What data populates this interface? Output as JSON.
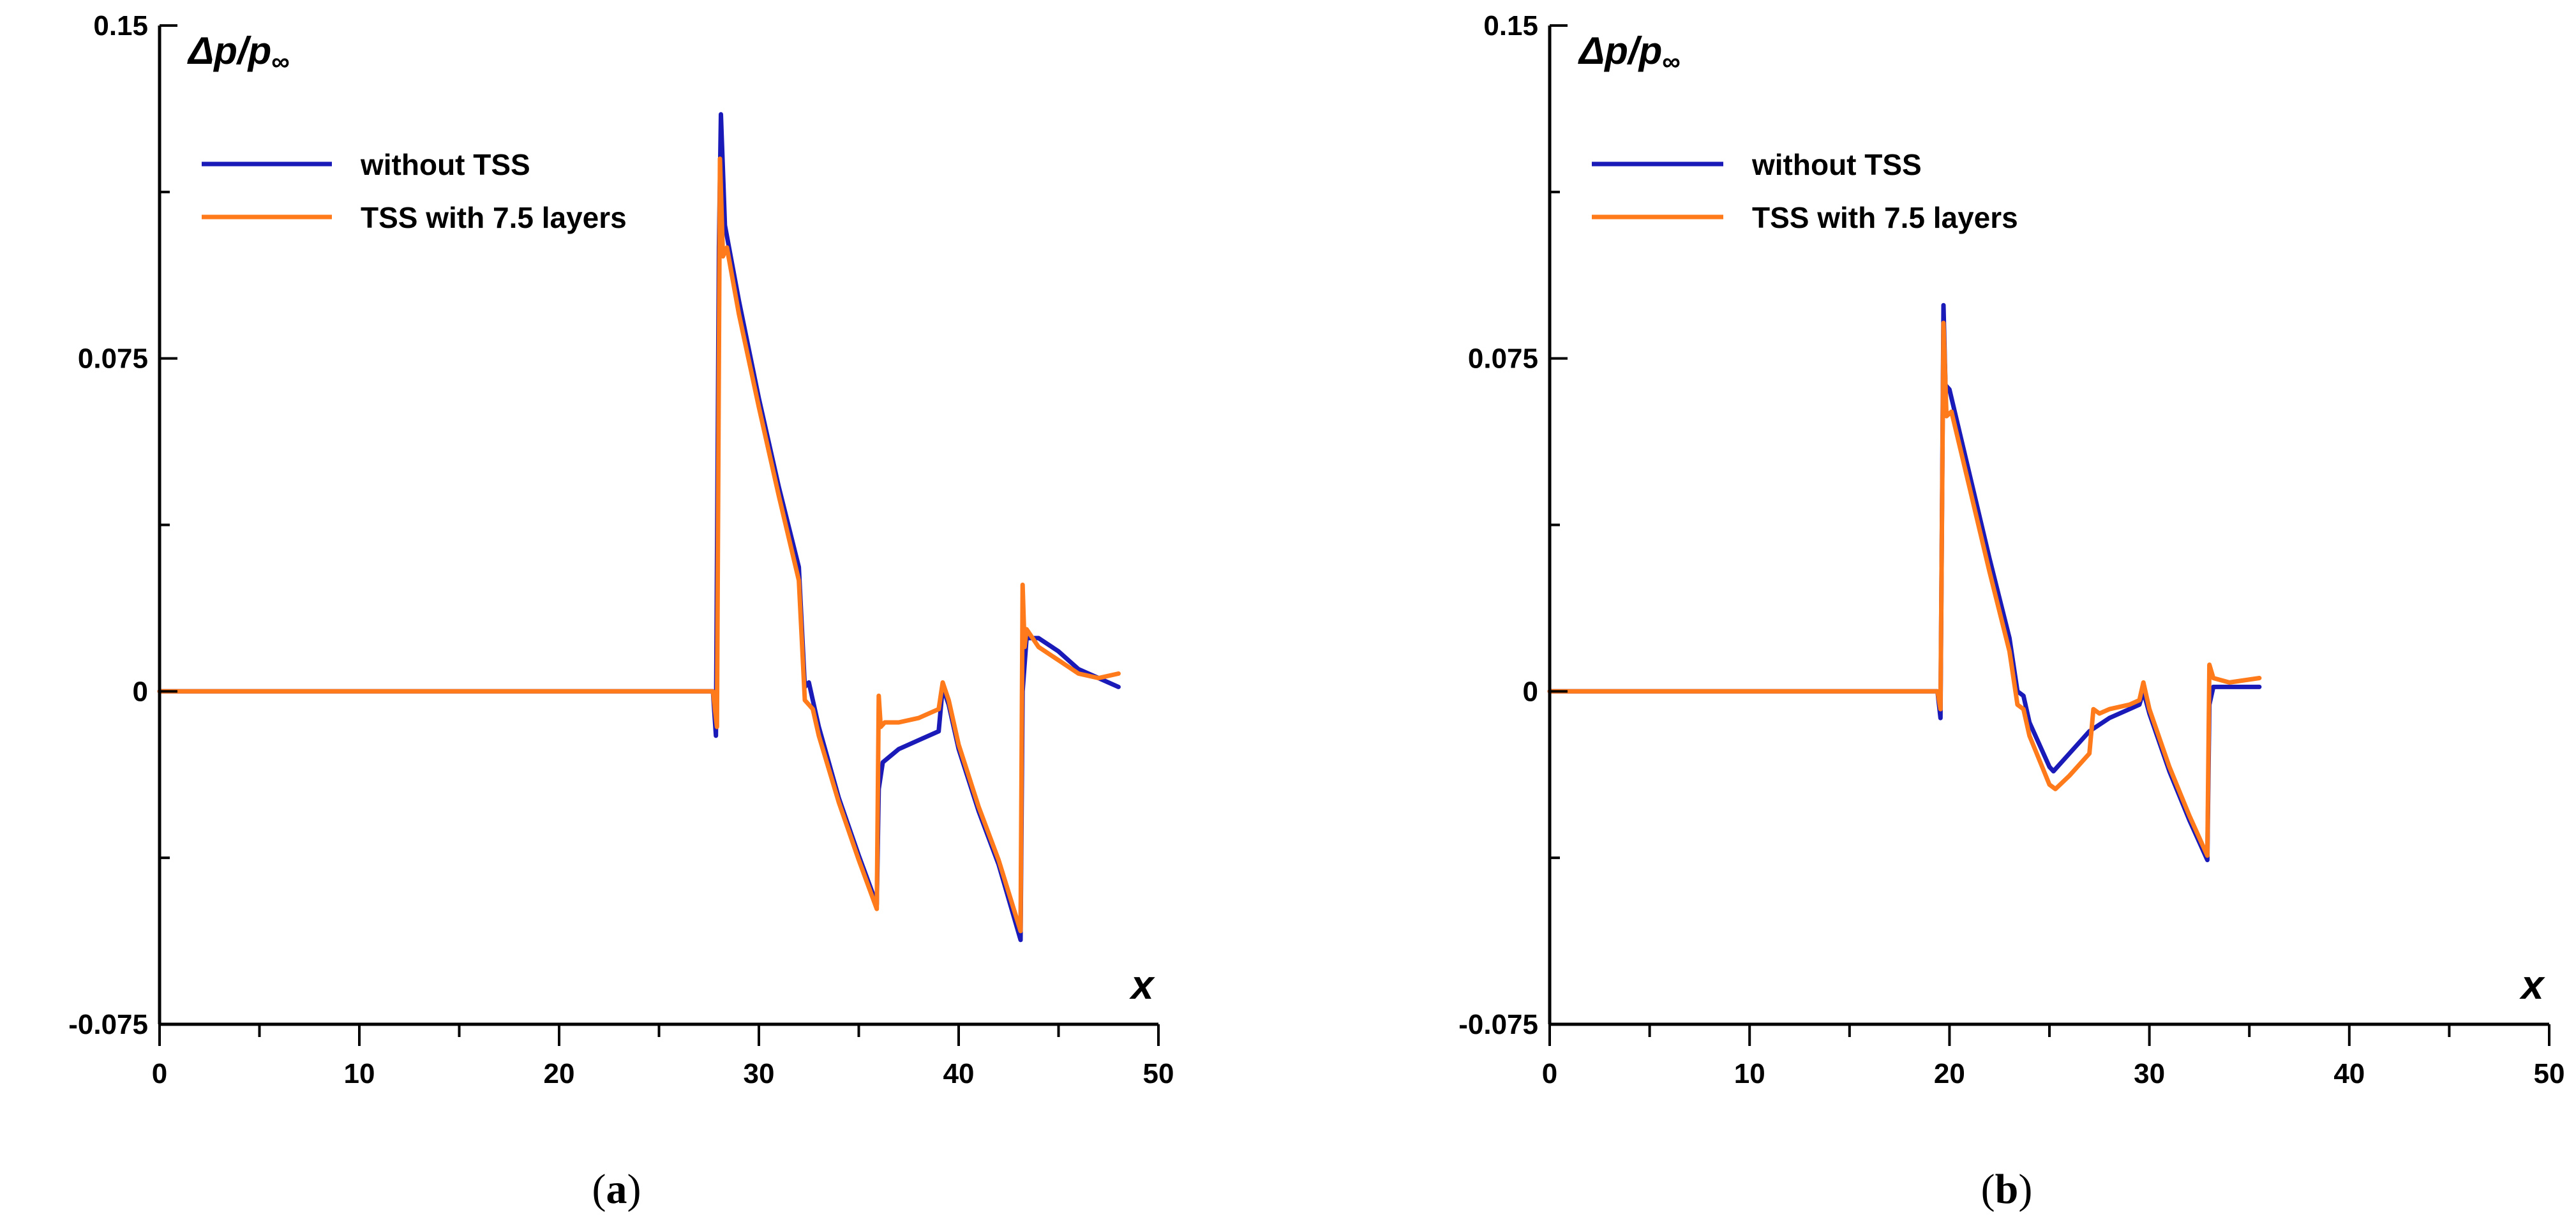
{
  "colors": {
    "without_tss": "#1a1ab8",
    "tss": "#ff7a1a"
  },
  "chart_data": [
    {
      "type": "line",
      "caption_open": "(",
      "caption_letter": "a",
      "caption_close": ")",
      "xlabel": "x",
      "ylabel_delta": "Δ",
      "ylabel_p": "p/p",
      "ylabel_sub": "∞",
      "xlim": [
        0,
        50
      ],
      "ylim": [
        -0.075,
        0.15
      ],
      "xticks": [
        0,
        10,
        20,
        30,
        40,
        50
      ],
      "xtick_labels": [
        "0",
        "10",
        "20",
        "30",
        "40",
        "50"
      ],
      "yticks": [
        -0.075,
        0,
        0.075,
        0.15
      ],
      "ytick_labels": [
        "-0.075",
        "0",
        "0.075",
        "0.15"
      ],
      "legend": [
        "without TSS",
        "TSS with 7.5 layers"
      ],
      "series": [
        {
          "name": "without TSS",
          "x": [
            0,
            27.5,
            27.7,
            27.85,
            28.0,
            28.1,
            28.3,
            29,
            30,
            31,
            32,
            32.3,
            32.5,
            32.7,
            33,
            34,
            35,
            35.9,
            36.0,
            36.2,
            37,
            38,
            39,
            39.2,
            39.5,
            40,
            41,
            42,
            43.1,
            43.2,
            43.4,
            44,
            45,
            46,
            47,
            48
          ],
          "y": [
            0,
            0,
            0,
            -0.01,
            0.1,
            0.13,
            0.105,
            0.088,
            0.066,
            0.046,
            0.028,
            0.001,
            0.002,
            -0.002,
            -0.008,
            -0.024,
            -0.037,
            -0.048,
            -0.022,
            -0.016,
            -0.013,
            -0.011,
            -0.009,
            0.001,
            -0.003,
            -0.013,
            -0.027,
            -0.039,
            -0.056,
            0.0,
            0.012,
            0.012,
            0.009,
            0.005,
            0.003,
            0.001
          ]
        },
        {
          "name": "TSS with 7.5 layers",
          "x": [
            0,
            27.5,
            27.7,
            27.9,
            28.05,
            28.2,
            28.4,
            29,
            30,
            31,
            32,
            32.3,
            32.5,
            32.7,
            33,
            34,
            35,
            35.9,
            36.0,
            36.1,
            36.3,
            37,
            38,
            39,
            39.2,
            39.5,
            40,
            41,
            42,
            43.1,
            43.2,
            43.3,
            43.4,
            44,
            45,
            46,
            47,
            48
          ],
          "y": [
            0,
            0,
            0,
            -0.008,
            0.12,
            0.098,
            0.1,
            0.085,
            0.064,
            0.044,
            0.025,
            -0.002,
            -0.003,
            -0.004,
            -0.01,
            -0.025,
            -0.038,
            -0.049,
            -0.001,
            -0.008,
            -0.007,
            -0.007,
            -0.006,
            -0.004,
            0.002,
            -0.002,
            -0.012,
            -0.026,
            -0.038,
            -0.054,
            0.024,
            0.01,
            0.014,
            0.01,
            0.007,
            0.004,
            0.003,
            0.004
          ]
        }
      ]
    },
    {
      "type": "line",
      "caption_open": "(",
      "caption_letter": "b",
      "caption_close": ")",
      "xlabel": "x",
      "ylabel_delta": "Δ",
      "ylabel_p": "p/p",
      "ylabel_sub": "∞",
      "xlim": [
        0,
        50
      ],
      "ylim": [
        -0.075,
        0.15
      ],
      "xticks": [
        0,
        10,
        20,
        30,
        40,
        50
      ],
      "xtick_labels": [
        "0",
        "10",
        "20",
        "30",
        "40",
        "50"
      ],
      "yticks": [
        -0.075,
        0,
        0.075,
        0.15
      ],
      "ytick_labels": [
        "-0.075",
        "0",
        "0.075",
        "0.15"
      ],
      "legend": [
        "without TSS",
        "TSS with 7.5 layers"
      ],
      "series": [
        {
          "name": "without TSS",
          "x": [
            0,
            19.4,
            19.55,
            19.7,
            19.8,
            20.0,
            21,
            22,
            23,
            23.4,
            23.7,
            24,
            25,
            25.2,
            26,
            27,
            28,
            29,
            29.5,
            29.7,
            30,
            31,
            32,
            32.9,
            33.0,
            33.2,
            34,
            35.5
          ],
          "y": [
            0,
            0,
            -0.006,
            0.087,
            0.069,
            0.068,
            0.049,
            0.03,
            0.012,
            0.0,
            -0.001,
            -0.007,
            -0.017,
            -0.018,
            -0.014,
            -0.009,
            -0.006,
            -0.004,
            -0.003,
            0.0,
            -0.005,
            -0.018,
            -0.029,
            -0.038,
            -0.003,
            0.001,
            0.001,
            0.001
          ]
        },
        {
          "name": "TSS with 7.5 layers",
          "x": [
            0,
            19.4,
            19.55,
            19.7,
            19.85,
            20.1,
            21,
            22,
            23,
            23.4,
            23.7,
            24,
            25,
            25.3,
            26,
            27,
            27.2,
            27.5,
            28,
            29,
            29.5,
            29.7,
            30,
            31,
            32,
            32.9,
            33.0,
            33.2,
            34,
            35.5
          ],
          "y": [
            0,
            0,
            -0.004,
            0.083,
            0.062,
            0.063,
            0.046,
            0.027,
            0.009,
            -0.003,
            -0.004,
            -0.01,
            -0.021,
            -0.022,
            -0.019,
            -0.014,
            -0.004,
            -0.005,
            -0.004,
            -0.003,
            -0.002,
            0.002,
            -0.004,
            -0.017,
            -0.028,
            -0.037,
            0.006,
            0.003,
            0.002,
            0.003
          ]
        }
      ]
    }
  ]
}
